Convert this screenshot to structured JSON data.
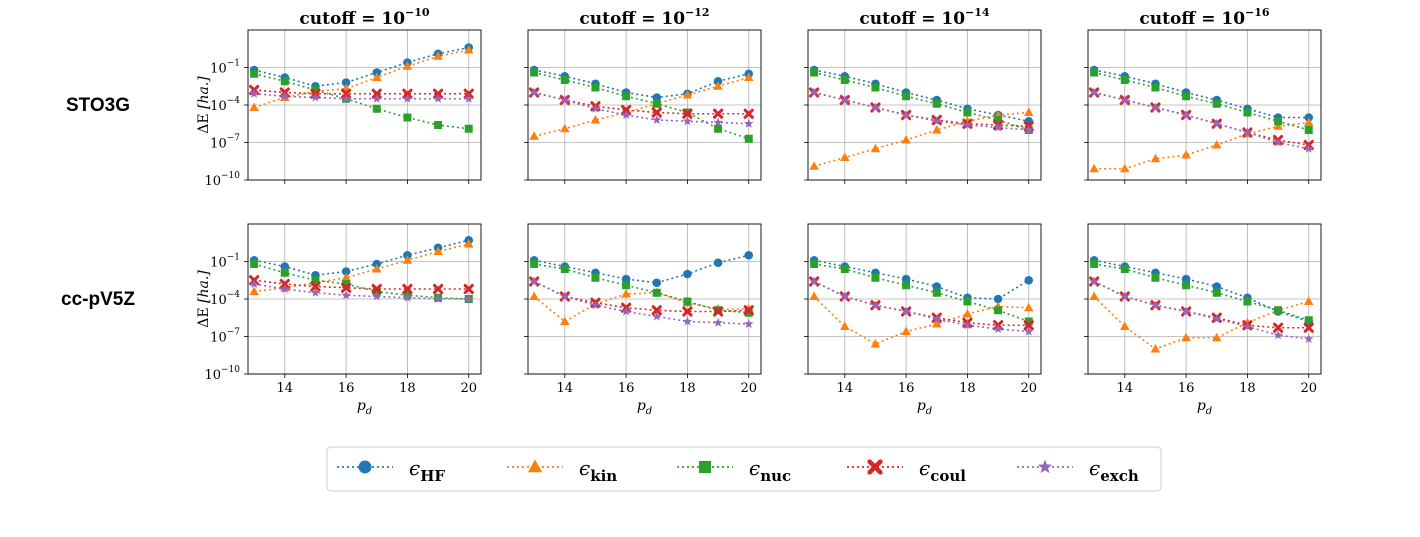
{
  "chart_data": {
    "type": "line",
    "scale_y": "log10",
    "grid": true,
    "x": [
      13,
      14,
      15,
      16,
      17,
      18,
      19,
      20
    ],
    "xlim": [
      12.8,
      20.4
    ],
    "ylim_exp": [
      -10,
      2
    ],
    "x_ticks": [
      "14",
      "16",
      "18",
      "20"
    ],
    "y_ticks": [
      {
        "base": "10",
        "exp": "−1",
        "log": -1
      },
      {
        "base": "10",
        "exp": "−4",
        "log": -4
      },
      {
        "base": "10",
        "exp": "−7",
        "log": -7
      },
      {
        "base": "10",
        "exp": "−10",
        "log": -10
      }
    ],
    "xlabel_main": "p",
    "xlabel_sub": "d",
    "ylabel_main": "ΔE",
    "ylabel_unit": "[ha.]",
    "legend_position": "bottom-center",
    "series_meta": [
      {
        "key": "hf",
        "sym": "ϵ",
        "sub": "HF",
        "color": "#1f77b4",
        "marker": "circle"
      },
      {
        "key": "kin",
        "sym": "ϵ",
        "sub": "kin",
        "color": "#ff7f0e",
        "marker": "triangle"
      },
      {
        "key": "nuc",
        "sym": "ϵ",
        "sub": "nuc",
        "color": "#2ca02c",
        "marker": "square"
      },
      {
        "key": "coul",
        "sym": "ϵ",
        "sub": "coul",
        "color": "#d62728",
        "marker": "x"
      },
      {
        "key": "exch",
        "sym": "ϵ",
        "sub": "exch",
        "color": "#9467bd",
        "marker": "star"
      }
    ],
    "row_labels": [
      "STO3G",
      "cc-pV5Z"
    ],
    "col_titles": [
      {
        "base": "cutoff = 10",
        "exp": "−10"
      },
      {
        "base": "cutoff = 10",
        "exp": "−12"
      },
      {
        "base": "cutoff = 10",
        "exp": "−14"
      },
      {
        "base": "cutoff = 10",
        "exp": "−16"
      }
    ],
    "panels": [
      {
        "row": 0,
        "col": 0,
        "series": {
          "hf": [
            -1.2,
            -1.8,
            -2.5,
            -2.2,
            -1.4,
            -0.6,
            0.1,
            0.6
          ],
          "kin": [
            -4.2,
            -3.4,
            -2.9,
            -2.7,
            -1.8,
            -0.9,
            -0.1,
            0.4
          ],
          "nuc": [
            -1.5,
            -2.1,
            -2.8,
            -3.5,
            -4.3,
            -5.0,
            -5.6,
            -5.9
          ],
          "coul": [
            -2.8,
            -3.0,
            -3.1,
            -3.1,
            -3.1,
            -3.1,
            -3.1,
            -3.1
          ],
          "exch": [
            -3.1,
            -3.3,
            -3.4,
            -3.5,
            -3.5,
            -3.5,
            -3.5,
            -3.5
          ]
        }
      },
      {
        "row": 0,
        "col": 1,
        "series": {
          "hf": [
            -1.2,
            -1.7,
            -2.3,
            -3.0,
            -3.4,
            -3.1,
            -2.1,
            -1.5
          ],
          "kin": [
            -6.5,
            -5.9,
            -5.2,
            -4.6,
            -3.9,
            -3.2,
            -2.5,
            -1.8
          ],
          "nuc": [
            -1.4,
            -2.0,
            -2.6,
            -3.3,
            -3.9,
            -4.6,
            -5.9,
            -6.7
          ],
          "coul": [
            -3.0,
            -3.6,
            -4.1,
            -4.4,
            -4.6,
            -4.7,
            -4.7,
            -4.7
          ],
          "exch": [
            -3.0,
            -3.6,
            -4.3,
            -4.8,
            -5.2,
            -5.3,
            -5.4,
            -5.5
          ]
        }
      },
      {
        "row": 0,
        "col": 2,
        "series": {
          "hf": [
            -1.2,
            -1.7,
            -2.3,
            -3.0,
            -3.6,
            -4.3,
            -4.8,
            -5.3
          ],
          "kin": [
            -8.9,
            -8.2,
            -7.5,
            -6.8,
            -6.0,
            -5.3,
            -4.8,
            -4.6
          ],
          "nuc": [
            -1.4,
            -2.0,
            -2.6,
            -3.3,
            -3.9,
            -4.6,
            -5.2,
            -6.0
          ],
          "coul": [
            -3.0,
            -3.6,
            -4.2,
            -4.8,
            -5.2,
            -5.5,
            -5.6,
            -5.7
          ],
          "exch": [
            -3.0,
            -3.6,
            -4.2,
            -4.8,
            -5.3,
            -5.6,
            -5.8,
            -6.0
          ]
        }
      },
      {
        "row": 0,
        "col": 3,
        "series": {
          "hf": [
            -1.2,
            -1.7,
            -2.3,
            -3.0,
            -3.6,
            -4.3,
            -5.0,
            -5.0
          ],
          "kin": [
            -9.1,
            -9.1,
            -8.3,
            -8.0,
            -7.2,
            -6.3,
            -5.7,
            -5.4
          ],
          "nuc": [
            -1.4,
            -2.0,
            -2.6,
            -3.3,
            -3.9,
            -4.6,
            -5.3,
            -6.0
          ],
          "coul": [
            -3.0,
            -3.6,
            -4.2,
            -4.8,
            -5.5,
            -6.2,
            -6.8,
            -7.2
          ],
          "exch": [
            -3.0,
            -3.6,
            -4.2,
            -4.8,
            -5.5,
            -6.2,
            -7.0,
            -7.5
          ]
        }
      },
      {
        "row": 1,
        "col": 0,
        "series": {
          "hf": [
            -0.9,
            -1.4,
            -2.1,
            -1.8,
            -1.2,
            -0.5,
            0.1,
            0.7
          ],
          "kin": [
            -3.4,
            -3.1,
            -2.7,
            -2.3,
            -1.6,
            -0.9,
            -0.2,
            0.4
          ],
          "nuc": [
            -1.2,
            -1.9,
            -2.5,
            -2.8,
            -3.4,
            -3.7,
            -3.9,
            -4.0
          ],
          "coul": [
            -2.5,
            -2.8,
            -3.0,
            -3.1,
            -3.2,
            -3.2,
            -3.2,
            -3.2
          ],
          "exch": [
            -2.8,
            -3.2,
            -3.5,
            -3.7,
            -3.8,
            -3.9,
            -4.0,
            -4.0
          ]
        }
      },
      {
        "row": 1,
        "col": 1,
        "series": {
          "hf": [
            -0.9,
            -1.4,
            -1.9,
            -2.4,
            -2.7,
            -2.0,
            -1.1,
            -0.5
          ],
          "kin": [
            -3.8,
            -5.8,
            -4.4,
            -3.6,
            -3.5,
            -4.3,
            -4.8,
            -4.8
          ],
          "nuc": [
            -1.2,
            -1.6,
            -2.3,
            -2.9,
            -3.5,
            -4.2,
            -4.9,
            -5.1
          ],
          "coul": [
            -2.6,
            -3.8,
            -4.3,
            -4.7,
            -4.9,
            -5.0,
            -5.0,
            -4.9
          ],
          "exch": [
            -2.6,
            -3.8,
            -4.5,
            -5.0,
            -5.4,
            -5.8,
            -5.9,
            -6.0
          ]
        }
      },
      {
        "row": 1,
        "col": 2,
        "series": {
          "hf": [
            -0.9,
            -1.4,
            -1.9,
            -2.4,
            -3.0,
            -3.9,
            -4.0,
            -2.5
          ],
          "kin": [
            -3.8,
            -6.2,
            -7.6,
            -6.6,
            -6.0,
            -5.2,
            -4.6,
            -4.7
          ],
          "nuc": [
            -1.2,
            -1.6,
            -2.3,
            -2.9,
            -3.5,
            -4.2,
            -4.9,
            -5.8
          ],
          "coul": [
            -2.6,
            -3.8,
            -4.5,
            -5.0,
            -5.5,
            -5.9,
            -6.1,
            -6.1
          ],
          "exch": [
            -2.6,
            -3.8,
            -4.5,
            -5.0,
            -5.6,
            -6.1,
            -6.4,
            -6.6
          ]
        }
      },
      {
        "row": 1,
        "col": 3,
        "series": {
          "hf": [
            -0.9,
            -1.4,
            -1.9,
            -2.4,
            -3.0,
            -3.9,
            -5.0,
            -5.8
          ],
          "kin": [
            -3.8,
            -6.2,
            -8.0,
            -7.1,
            -7.1,
            -5.9,
            -4.9,
            -4.2
          ],
          "nuc": [
            -1.2,
            -1.6,
            -2.3,
            -2.9,
            -3.5,
            -4.2,
            -4.9,
            -5.7
          ],
          "coul": [
            -2.6,
            -3.8,
            -4.5,
            -5.0,
            -5.5,
            -6.1,
            -6.3,
            -6.3
          ],
          "exch": [
            -2.6,
            -3.8,
            -4.5,
            -5.0,
            -5.6,
            -6.2,
            -6.9,
            -7.2
          ]
        }
      }
    ]
  }
}
